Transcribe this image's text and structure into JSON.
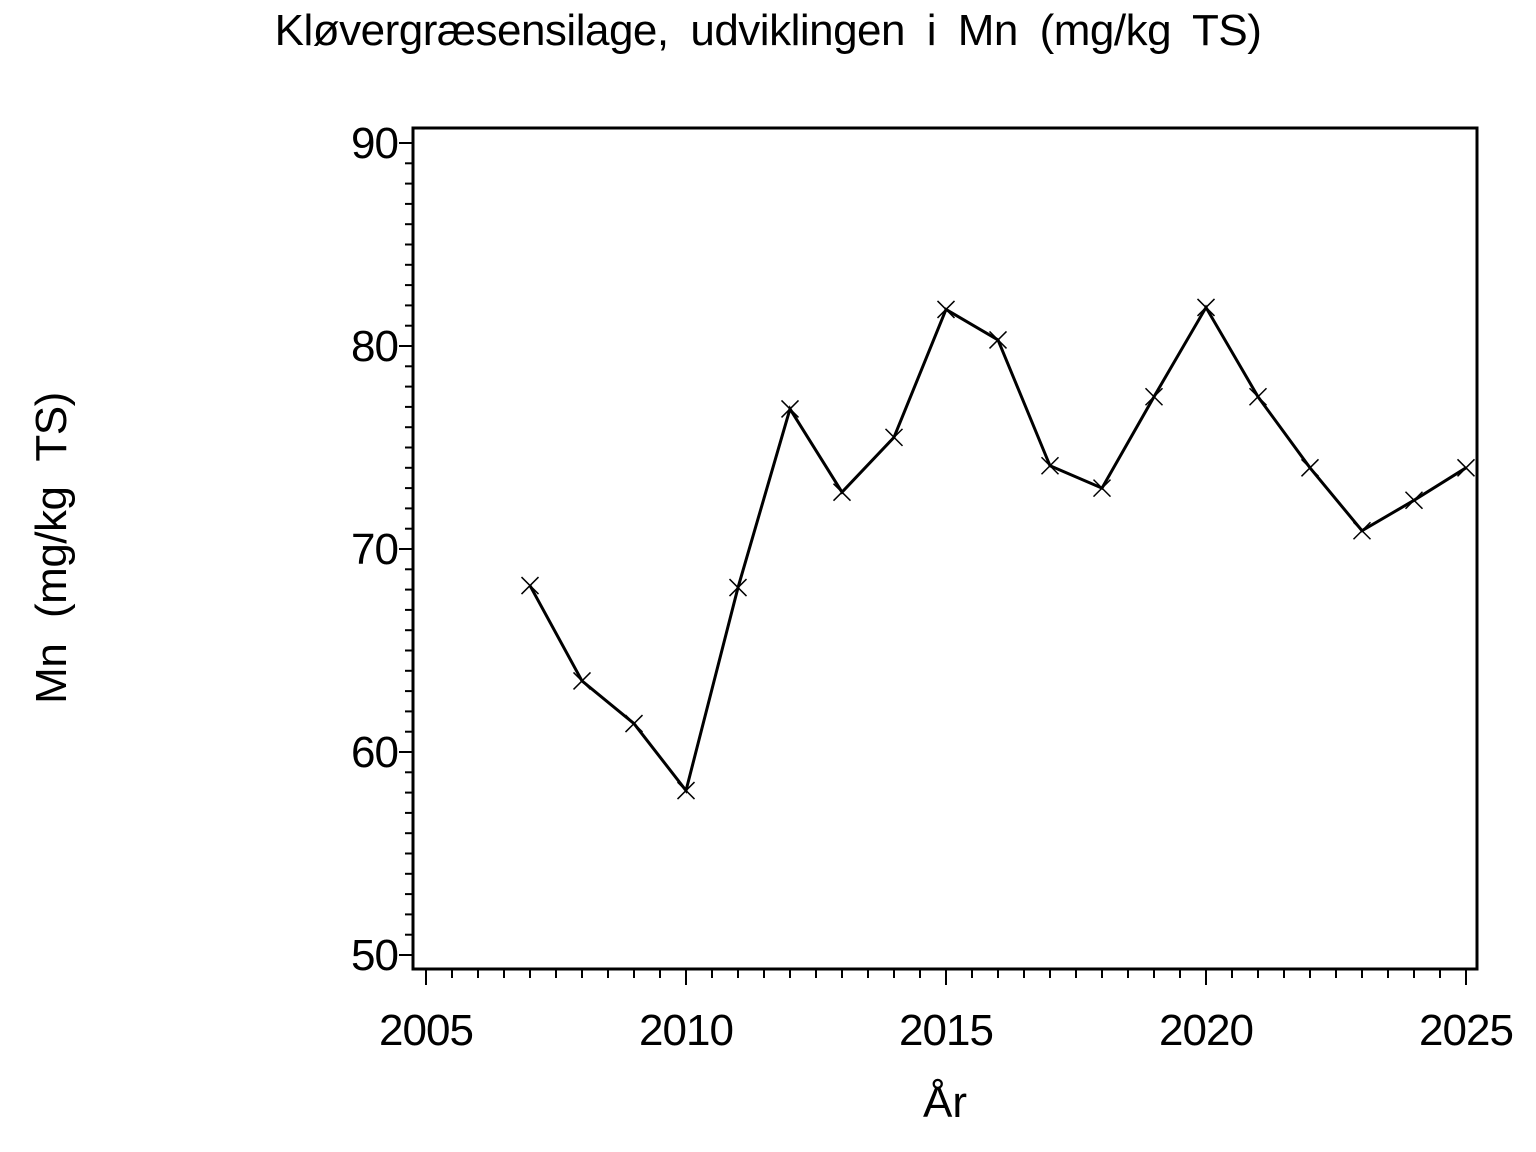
{
  "chart_data": {
    "type": "line",
    "title": "Kløvergræsensilage, udviklingen i Mn (mg/kg TS)",
    "xlabel": "År",
    "ylabel": "Mn (mg/kg TS)",
    "x": [
      2007,
      2008,
      2009,
      2010,
      2011,
      2012,
      2013,
      2014,
      2015,
      2016,
      2017,
      2018,
      2019,
      2020,
      2021,
      2022,
      2023,
      2024,
      2025
    ],
    "series": [
      {
        "name": "Mn (mg/kg TS)",
        "values": [
          68.2,
          63.5,
          61.4,
          58.1,
          68.1,
          76.9,
          72.8,
          75.5,
          81.8,
          80.3,
          74.1,
          73.0,
          77.5,
          81.9,
          77.5,
          74.0,
          70.9,
          72.4,
          74.0
        ]
      }
    ],
    "xlim": [
      2004.75,
      2025.2
    ],
    "ylim": [
      49.3,
      90.7
    ],
    "xticks_major": [
      2005,
      2010,
      2015,
      2020,
      2025
    ],
    "xtick_minor_step": 0.5,
    "yticks_major": [
      50,
      60,
      70,
      80,
      90
    ],
    "ytick_minor_step": 1,
    "grid": false,
    "legend_position": "none",
    "marker": "x",
    "line_color": "#000000",
    "axis_color": "#000000",
    "background": "#ffffff"
  }
}
